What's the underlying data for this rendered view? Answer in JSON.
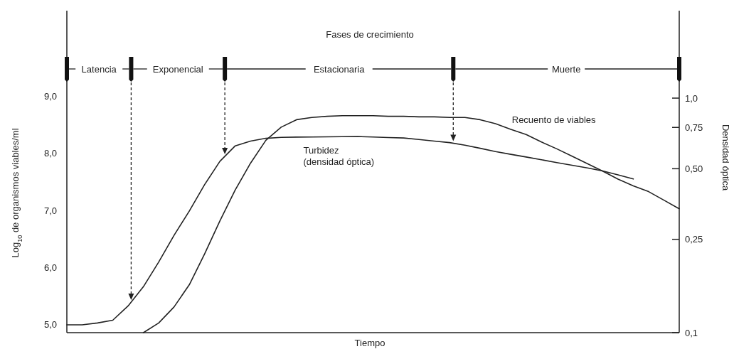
{
  "chart_data": {
    "type": "line",
    "title": "Fases de crecimiento",
    "xlabel": "Tiempo",
    "ylabel": "Log$_{10}$ de organismos viables/ml",
    "y2label": "Densidad óptica",
    "categories": [
      null,
      null,
      null,
      null,
      null,
      null,
      null,
      null,
      null,
      null,
      null,
      null,
      null,
      null,
      null,
      null,
      null,
      null,
      null,
      null,
      null,
      null,
      null,
      null,
      null,
      null,
      null,
      null,
      null,
      null,
      null,
      null,
      null,
      null,
      null,
      null,
      null,
      null,
      null,
      null,
      null
    ],
    "ylim": [
      4.86,
      10.5
    ],
    "yticks": [
      {
        "value": 5,
        "label": "5,0"
      },
      {
        "value": 6,
        "label": "6,0"
      },
      {
        "value": 7,
        "label": "7,0"
      },
      {
        "value": 8,
        "label": "8,0"
      },
      {
        "value": 9,
        "label": "9,0"
      }
    ],
    "y2lim": [
      0.1,
      2.36
    ],
    "y2ticks": [
      {
        "value": 0.1,
        "label": "0,1"
      },
      {
        "value": 0.25,
        "label": "0,25"
      },
      {
        "value": 0.5,
        "label": "0,50"
      },
      {
        "value": 0.75,
        "label": "0,75"
      },
      {
        "value": 1,
        "label": "1,0"
      }
    ],
    "log": "y2",
    "line_style": "solid",
    "series": [
      {
        "name": "Turbidez (densidad óptica)",
        "color": "#222222",
        "axis": "y2",
        "values": [
          0.108,
          0.108,
          0.11,
          0.113,
          0.13,
          0.157,
          0.2,
          0.26,
          0.33,
          0.428,
          0.538,
          0.626,
          0.656,
          0.674,
          0.68,
          0.682,
          0.683,
          0.684,
          0.685,
          0.686,
          0.683,
          0.679,
          0.676,
          0.666,
          0.656,
          0.646,
          0.63,
          0.611,
          0.592,
          0.576,
          0.561,
          0.546,
          0.531,
          0.517,
          0.504,
          0.489,
          0.471,
          0.452,
          null,
          null,
          null
        ]
      },
      {
        "name": "Recuento de viables",
        "color": "#222222",
        "axis": "y",
        "values": [
          null,
          null,
          null,
          null,
          null,
          4.86,
          5.03,
          5.31,
          5.7,
          6.24,
          6.82,
          7.36,
          7.83,
          8.23,
          8.46,
          8.59,
          8.63,
          8.65,
          8.66,
          8.66,
          8.66,
          8.65,
          8.65,
          8.64,
          8.64,
          8.63,
          8.63,
          8.59,
          8.52,
          8.42,
          8.33,
          8.2,
          8.08,
          7.95,
          7.82,
          7.69,
          7.55,
          7.43,
          7.33,
          7.18,
          7.03
        ]
      }
    ],
    "annotations": [
      "Latencia",
      "Exponencial",
      "Estacionaria",
      "Muerte"
    ]
  }
}
